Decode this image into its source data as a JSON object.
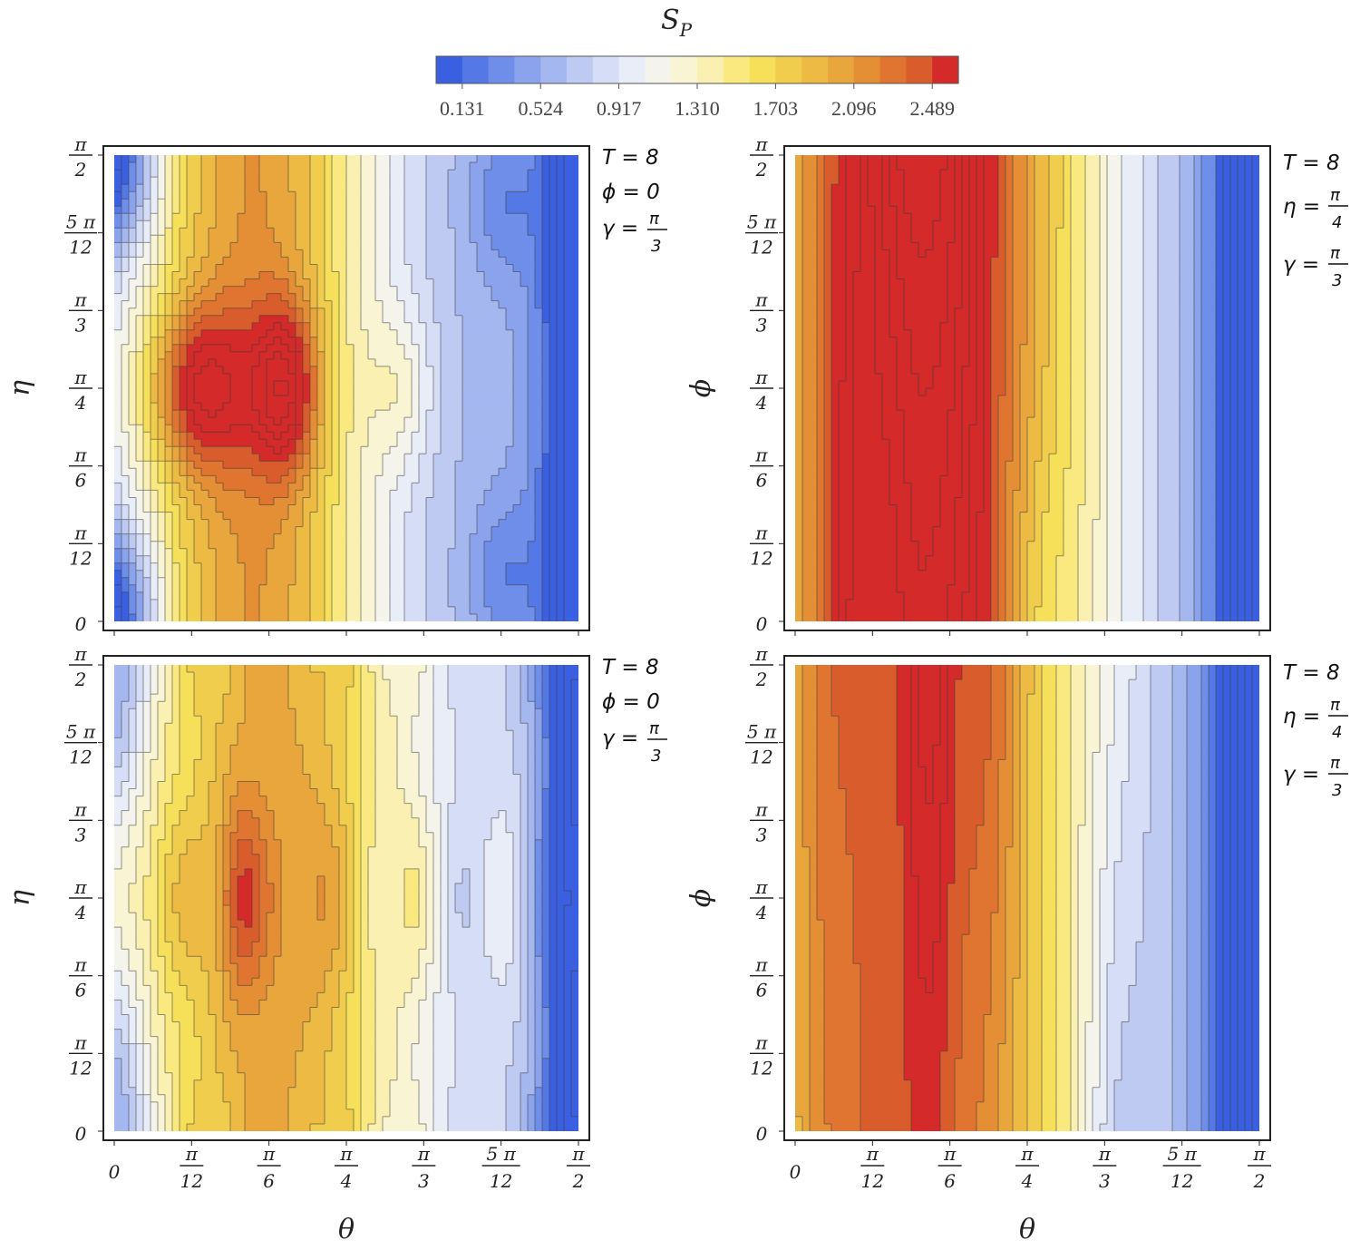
{
  "chart_data": {
    "type": "heatmap",
    "title": "S_P",
    "colorbar": {
      "title": "S",
      "title_sub": "P",
      "ticks": [
        "0.131",
        "0.524",
        "0.917",
        "1.310",
        "1.703",
        "2.096",
        "2.489"
      ],
      "tick_values": [
        0.131,
        0.524,
        0.917,
        1.31,
        1.703,
        2.096,
        2.489
      ],
      "range": [
        0.0,
        2.62
      ],
      "levels": 20,
      "colors": [
        "#3a5fe0",
        "#5478e6",
        "#6f8ee9",
        "#8ba3ec",
        "#a5b7ef",
        "#bfcaf3",
        "#d6ddf6",
        "#e9edf8",
        "#f4f4ec",
        "#f8f4d4",
        "#faf0b2",
        "#f9e97f",
        "#f6e05a",
        "#f1cd4e",
        "#edbb44",
        "#e9a63c",
        "#e48f35",
        "#df7530",
        "#d95d2c",
        "#d42a2a"
      ]
    },
    "x_ticks": [
      "0",
      "π/12",
      "π/6",
      "π/4",
      "π/3",
      "5π/12",
      "π/2"
    ],
    "y_ticks": [
      "0",
      "π/12",
      "π/6",
      "π/4",
      "π/3",
      "5π/12",
      "π/2"
    ],
    "panels": [
      {
        "id": "top-left",
        "xlabel": "θ",
        "ylabel": "η",
        "xrange": [
          0,
          "π/2"
        ],
        "yrange": [
          0,
          "π/2"
        ],
        "params": {
          "T": "8",
          "phi": "0",
          "gamma": "π/3"
        },
        "ann": [
          "T = 8",
          "ϕ = 0",
          "γ = ",
          "π",
          "3"
        ]
      },
      {
        "id": "top-right",
        "xlabel": "θ",
        "ylabel": "ϕ",
        "xrange": [
          0,
          "π/2"
        ],
        "yrange": [
          0,
          "π/2"
        ],
        "params": {
          "T": "8",
          "eta": "π/4",
          "gamma": "π/3"
        },
        "ann": [
          "T = 8",
          "η = ",
          "π",
          "4",
          "γ = ",
          "π",
          "3"
        ]
      },
      {
        "id": "bottom-left",
        "xlabel": "θ",
        "ylabel": "η",
        "xrange": [
          0,
          "π/2"
        ],
        "yrange": [
          0,
          "π/2"
        ],
        "params": {
          "T": "8",
          "phi": "0",
          "gamma": "π/3"
        },
        "ann": [
          "T = 8",
          "ϕ = 0",
          "γ = ",
          "π",
          "3"
        ]
      },
      {
        "id": "bottom-right",
        "xlabel": "θ",
        "ylabel": "ϕ",
        "xrange": [
          0,
          "π/2"
        ],
        "yrange": [
          0,
          "π/2"
        ],
        "params": {
          "T": "8",
          "eta": "π/4",
          "gamma": "π/3"
        },
        "ann": [
          "T = 8",
          "η = ",
          "π",
          "4",
          "γ = ",
          "π",
          "3"
        ]
      }
    ]
  }
}
